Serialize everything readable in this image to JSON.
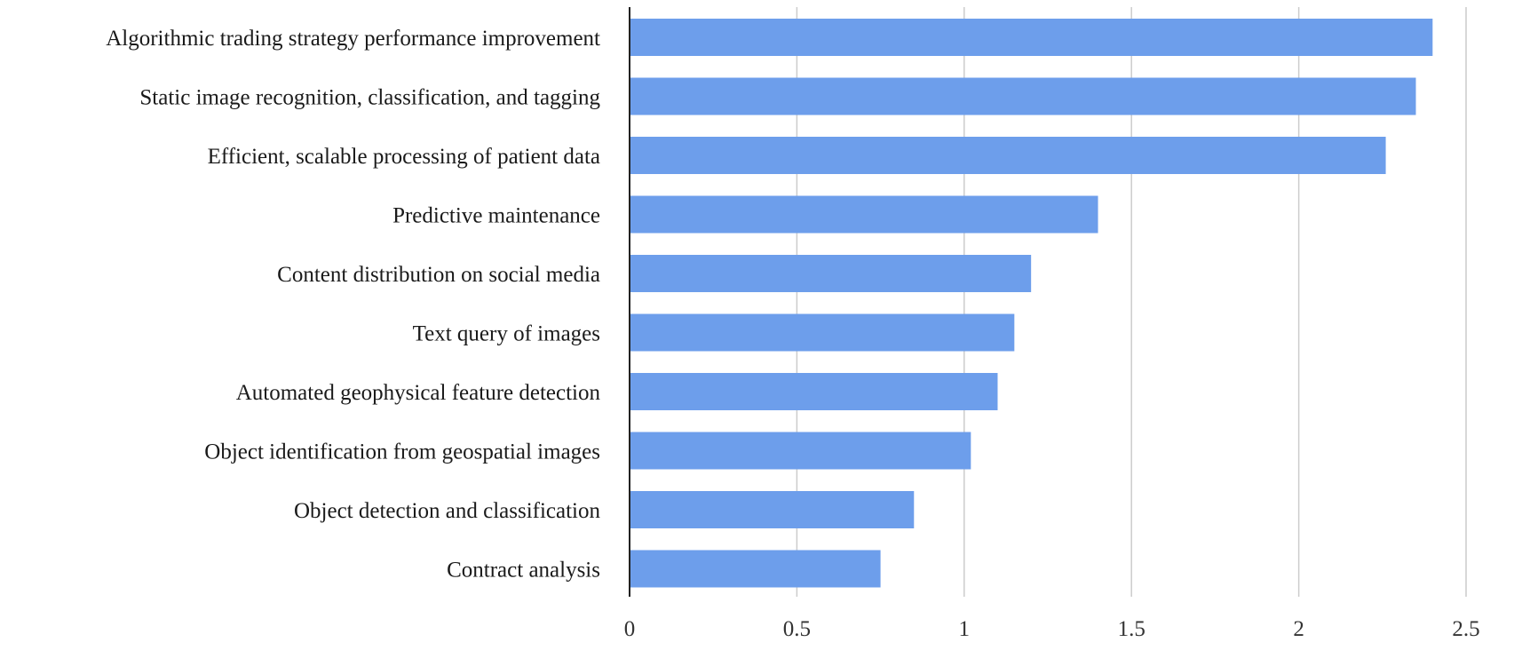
{
  "chart_data": {
    "type": "bar",
    "orientation": "horizontal",
    "categories": [
      "Algorithmic trading strategy performance improvement",
      "Static image recognition, classification, and tagging",
      "Efficient, scalable processing of patient data",
      "Predictive maintenance",
      "Content distribution on social media",
      "Text query of images",
      "Automated geophysical feature detection",
      "Object identification from geospatial images",
      "Object detection and classification",
      "Contract analysis"
    ],
    "values": [
      2.4,
      2.35,
      2.26,
      1.4,
      1.2,
      1.15,
      1.1,
      1.02,
      0.85,
      0.75
    ],
    "xlim": [
      0,
      2.5
    ],
    "xticks": [
      "0",
      "0.5",
      "1",
      "1.5",
      "2",
      "2.5"
    ],
    "xtick_values": [
      0,
      0.5,
      1,
      1.5,
      2,
      2.5
    ],
    "grid": true,
    "legend": "none",
    "bar_color": "#6d9eeb"
  }
}
